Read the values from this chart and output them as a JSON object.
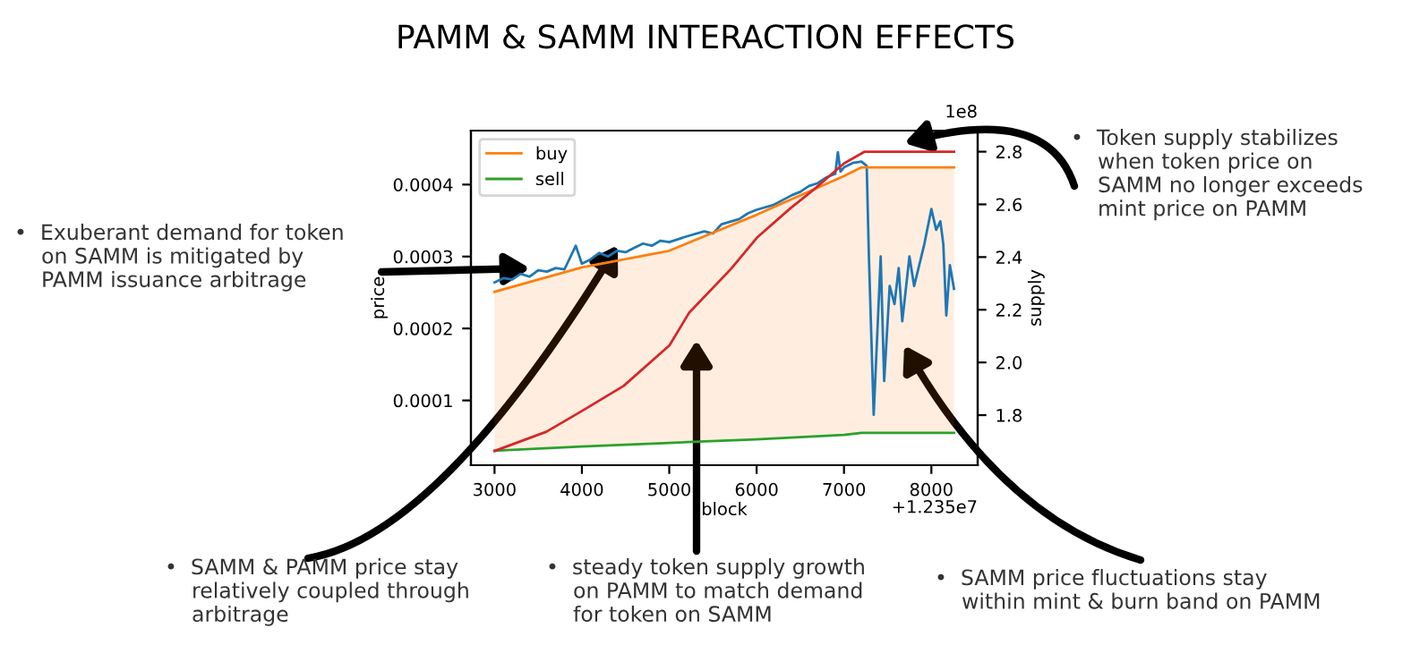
{
  "chart_data": {
    "type": "line",
    "title": "PAMM & SAMM INTERACTION EFFECTS",
    "xlabel": "block",
    "ylabel": "price",
    "y2label": "supply",
    "xlim": [
      2730,
      8530
    ],
    "xticks": [
      3000,
      4000,
      5000,
      6000,
      7000,
      8000
    ],
    "ylim": [
      1e-05,
      0.000475
    ],
    "yticks": [
      0.0001,
      0.0002,
      0.0003,
      0.0004
    ],
    "y2lim": [
      1.61,
      2.88
    ],
    "y2ticks": [
      1.8,
      {
        "value": 2.0,
        "label": "2.0"
      },
      2.2,
      2.4,
      2.6,
      2.8
    ],
    "legend": "top left",
    "grid": false,
    "series": [
      {
        "color": "#1f77b4",
        "x": [
          3000,
          3100,
          3200,
          3300,
          3400,
          3500,
          3600,
          3700,
          3800,
          3930,
          4000,
          4100,
          4200,
          4300,
          4400,
          4500,
          4600,
          4700,
          4800,
          4900,
          5000,
          5200,
          5400,
          5500,
          5600,
          5800,
          5900,
          6000,
          6200,
          6400,
          6500,
          6600,
          6700,
          6800,
          6900,
          6930,
          6960,
          7000,
          7100,
          7200,
          7260,
          7285,
          7340,
          7420,
          7460,
          7523,
          7578,
          7626,
          7667,
          7749,
          7803,
          7919,
          8000,
          8055,
          8103,
          8137,
          8171,
          8212,
          8259
        ],
        "values": [
          0.000264,
          0.00027,
          0.000268,
          0.000276,
          0.000272,
          0.000281,
          0.000279,
          0.000284,
          0.000282,
          0.000315,
          0.00029,
          0.000296,
          0.000305,
          0.0003,
          0.000308,
          0.000306,
          0.000312,
          0.000318,
          0.000315,
          0.000322,
          0.00032,
          0.000328,
          0.000335,
          0.000332,
          0.000345,
          0.000352,
          0.00036,
          0.000365,
          0.000372,
          0.000385,
          0.00039,
          0.000398,
          0.000402,
          0.00041,
          0.000415,
          0.000445,
          0.000418,
          0.000424,
          0.00043,
          0.000432,
          0.000426,
          0.0003,
          8e-05,
          0.0003,
          0.000127,
          0.000259,
          0.000234,
          0.000284,
          0.00021,
          0.0003,
          0.000259,
          0.000317,
          0.000366,
          0.000337,
          0.000349,
          0.000317,
          0.000218,
          0.000288,
          0.000255
        ]
      },
      {
        "name": "buy",
        "color": "#ff7f0e",
        "x": [
          3000,
          4000,
          5000,
          6000,
          7000,
          7200,
          8260
        ],
        "values": [
          0.000251,
          0.000285,
          0.000308,
          0.000358,
          0.000412,
          0.000424,
          0.000424
        ],
        "lower": [
          3e-05,
          3.6e-05,
          4.1e-05,
          4.6e-05,
          5.2e-05,
          5.5e-05,
          5.5e-05
        ],
        "upper": [
          0.000251,
          0.000285,
          0.000308,
          0.000358,
          0.000412,
          0.000424,
          0.000424
        ]
      },
      {
        "name": "sell",
        "color": "#2ca02c",
        "x": [
          3000,
          4000,
          5000,
          6000,
          7000,
          7200,
          8260
        ],
        "values": [
          3e-05,
          3.6e-05,
          4.1e-05,
          4.6e-05,
          5.2e-05,
          5.5e-05,
          5.5e-05
        ]
      },
      {
        "axis": "y2",
        "color": "#d62728",
        "x": [
          3000,
          3593,
          4001,
          4478,
          5003,
          5228,
          5704,
          6011,
          6386,
          6658,
          6999,
          7237,
          8260
        ],
        "values": [
          1.664,
          1.737,
          1.816,
          1.911,
          2.065,
          2.189,
          2.354,
          2.476,
          2.585,
          2.657,
          2.755,
          2.8,
          2.8
        ]
      }
    ],
    "annotations": [
      "•  Exuberant demand for token\n    on SAMM is mitigated by\n    PAMM issuance arbitrage",
      "•  SAMM & PAMM price stay\n    relatively coupled through\n    arbitrage",
      "•  steady token supply growth\n    on PAMM to match demand\n    for token on SAMM",
      "•  SAMM price fluctuations stay\n    within mint & burn band on PAMM",
      "•  Token supply stabilizes\n    when token price on\n    SAMM no longer exceeds\n    mint price on PAMM",
      "1e8",
      "+1.235e7"
    ]
  }
}
